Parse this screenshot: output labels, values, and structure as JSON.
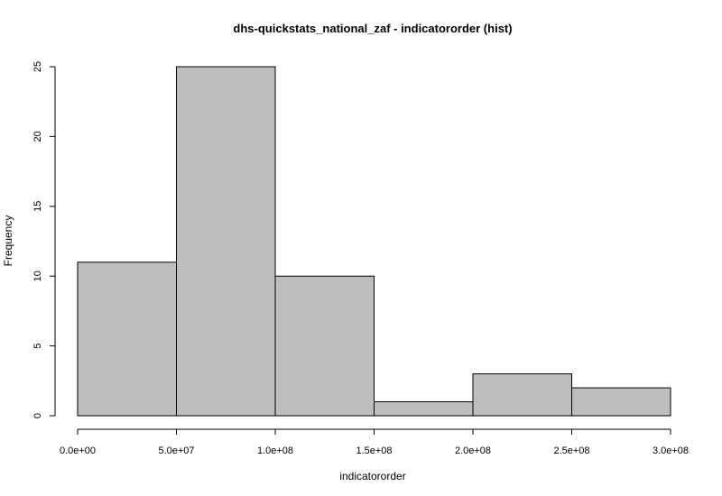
{
  "chart_data": {
    "type": "bar",
    "title": "dhs-quickstats_national_zaf - indicatororder (hist)",
    "xlabel": "indicatororder",
    "ylabel": "Frequency",
    "bins": [
      {
        "start": 0,
        "end": 50000000,
        "count": 11
      },
      {
        "start": 50000000,
        "end": 100000000,
        "count": 25
      },
      {
        "start": 100000000,
        "end": 150000000,
        "count": 10
      },
      {
        "start": 150000000,
        "end": 200000000,
        "count": 1
      },
      {
        "start": 200000000,
        "end": 250000000,
        "count": 3
      },
      {
        "start": 250000000,
        "end": 300000000,
        "count": 2
      }
    ],
    "xlim": [
      0,
      300000000
    ],
    "ylim": [
      0,
      25
    ],
    "x_ticks": [
      {
        "value": 0,
        "label": "0.0e+00"
      },
      {
        "value": 50000000,
        "label": "5.0e+07"
      },
      {
        "value": 100000000,
        "label": "1.0e+08"
      },
      {
        "value": 150000000,
        "label": "1.5e+08"
      },
      {
        "value": 200000000,
        "label": "2.0e+08"
      },
      {
        "value": 250000000,
        "label": "2.5e+08"
      },
      {
        "value": 300000000,
        "label": "3.0e+08"
      }
    ],
    "y_ticks": [
      {
        "value": 0,
        "label": "0"
      },
      {
        "value": 5,
        "label": "5"
      },
      {
        "value": 10,
        "label": "10"
      },
      {
        "value": 15,
        "label": "15"
      },
      {
        "value": 20,
        "label": "20"
      },
      {
        "value": 25,
        "label": "25"
      }
    ],
    "grid": false,
    "colors": {
      "bar_fill": "#bebebe",
      "bar_stroke": "#000000"
    }
  }
}
